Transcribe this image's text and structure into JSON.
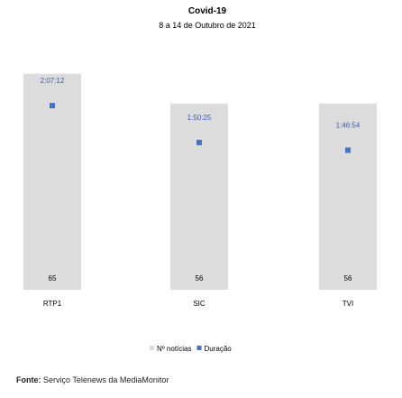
{
  "chart_data": {
    "type": "bar",
    "title": "Covid-19",
    "subtitle": "8 a 14 de Outubro de 2021",
    "categories": [
      "RTP1",
      "SIC",
      "TVI"
    ],
    "series": [
      {
        "name": "Nº notícias",
        "values": [
          65,
          56,
          56
        ],
        "color": "#dcdcdc"
      },
      {
        "name": "Duração",
        "labels": [
          "2:07:12",
          "1:50:25",
          "1:46:54"
        ],
        "seconds": [
          7632,
          6625,
          6414
        ],
        "color": "#4472c4"
      }
    ],
    "ylim_count": [
      0,
      66
    ],
    "ylim_duration_seconds": [
      0,
      7632
    ],
    "legend": "bottom",
    "grid": false
  },
  "source": {
    "label": "Fonte:",
    "text": " Serviço Telenews da MediaMonitor"
  }
}
